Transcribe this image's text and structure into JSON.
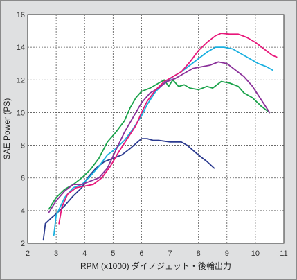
{
  "chart_data": {
    "type": "line",
    "title": "",
    "xlabel": "RPM (x1000) ダイノジェット・後輪出力",
    "ylabel": "SAE Power (PS)",
    "xlim": [
      2,
      11
    ],
    "ylim": [
      2,
      16
    ],
    "x_ticks": [
      "2",
      "3",
      "4",
      "5",
      "6",
      "7",
      "8",
      "9",
      "10",
      "11"
    ],
    "y_ticks": [
      "2",
      "4",
      "6",
      "8",
      "10",
      "12",
      "14",
      "16"
    ],
    "grid": true,
    "legend": "none",
    "series": [
      {
        "color": "#2b3a8f",
        "points": [
          [
            2.55,
            2.2
          ],
          [
            2.62,
            3.2
          ],
          [
            2.8,
            3.5
          ],
          [
            3.0,
            3.8
          ],
          [
            3.3,
            4.3
          ],
          [
            3.6,
            4.9
          ],
          [
            3.9,
            5.4
          ],
          [
            4.1,
            6.0
          ],
          [
            4.4,
            6.6
          ],
          [
            4.7,
            7.0
          ],
          [
            5.0,
            7.2
          ],
          [
            5.3,
            7.4
          ],
          [
            5.6,
            7.8
          ],
          [
            5.8,
            8.1
          ],
          [
            6.0,
            8.4
          ],
          [
            6.2,
            8.4
          ],
          [
            6.4,
            8.3
          ],
          [
            6.6,
            8.3
          ],
          [
            6.8,
            8.25
          ],
          [
            7.0,
            8.2
          ],
          [
            7.2,
            8.2
          ],
          [
            7.4,
            8.2
          ],
          [
            7.6,
            8.0
          ],
          [
            7.8,
            7.7
          ],
          [
            8.0,
            7.4
          ],
          [
            8.3,
            7.0
          ],
          [
            8.55,
            6.6
          ]
        ]
      },
      {
        "color": "#1aa24a",
        "points": [
          [
            2.75,
            4.1
          ],
          [
            3.0,
            4.8
          ],
          [
            3.3,
            5.3
          ],
          [
            3.6,
            5.6
          ],
          [
            3.9,
            6.0
          ],
          [
            4.2,
            6.5
          ],
          [
            4.5,
            7.2
          ],
          [
            4.8,
            8.2
          ],
          [
            5.1,
            8.8
          ],
          [
            5.4,
            9.5
          ],
          [
            5.6,
            10.3
          ],
          [
            5.8,
            10.9
          ],
          [
            6.0,
            11.3
          ],
          [
            6.3,
            11.5
          ],
          [
            6.6,
            11.8
          ],
          [
            6.8,
            12.0
          ],
          [
            6.95,
            11.6
          ],
          [
            7.1,
            12.0
          ],
          [
            7.3,
            11.6
          ],
          [
            7.5,
            11.7
          ],
          [
            7.7,
            11.5
          ],
          [
            8.0,
            11.4
          ],
          [
            8.3,
            11.6
          ],
          [
            8.5,
            11.5
          ],
          [
            8.8,
            11.9
          ],
          [
            9.1,
            11.8
          ],
          [
            9.4,
            11.6
          ],
          [
            9.6,
            11.2
          ],
          [
            9.9,
            10.9
          ],
          [
            10.2,
            10.4
          ],
          [
            10.5,
            10.0
          ]
        ]
      },
      {
        "color": "#1ab0e0",
        "points": [
          [
            2.92,
            2.5
          ],
          [
            3.0,
            3.7
          ],
          [
            3.3,
            4.8
          ],
          [
            3.6,
            5.4
          ],
          [
            3.9,
            5.6
          ],
          [
            4.2,
            6.1
          ],
          [
            4.5,
            6.7
          ],
          [
            4.8,
            7.4
          ],
          [
            5.1,
            7.8
          ],
          [
            5.4,
            8.3
          ],
          [
            5.7,
            9.0
          ],
          [
            6.0,
            9.8
          ],
          [
            6.2,
            10.5
          ],
          [
            6.5,
            11.3
          ],
          [
            6.8,
            11.8
          ],
          [
            7.1,
            12.2
          ],
          [
            7.4,
            12.5
          ],
          [
            7.7,
            12.9
          ],
          [
            8.0,
            13.3
          ],
          [
            8.3,
            13.7
          ],
          [
            8.6,
            14.0
          ],
          [
            8.9,
            14.0
          ],
          [
            9.2,
            13.9
          ],
          [
            9.5,
            13.6
          ],
          [
            9.8,
            13.3
          ],
          [
            10.1,
            13.0
          ],
          [
            10.4,
            12.8
          ],
          [
            10.6,
            12.6
          ]
        ]
      },
      {
        "color": "#8a2f99",
        "points": [
          [
            2.75,
            3.9
          ],
          [
            3.0,
            4.6
          ],
          [
            3.3,
            5.2
          ],
          [
            3.6,
            5.6
          ],
          [
            3.9,
            5.6
          ],
          [
            4.2,
            5.8
          ],
          [
            4.5,
            6.0
          ],
          [
            4.8,
            6.6
          ],
          [
            5.1,
            7.7
          ],
          [
            5.4,
            8.8
          ],
          [
            5.7,
            9.7
          ],
          [
            6.0,
            10.6
          ],
          [
            6.3,
            11.2
          ],
          [
            6.6,
            11.5
          ],
          [
            6.9,
            11.9
          ],
          [
            7.2,
            12.1
          ],
          [
            7.5,
            12.4
          ],
          [
            7.8,
            12.7
          ],
          [
            8.1,
            12.8
          ],
          [
            8.4,
            12.9
          ],
          [
            8.7,
            13.1
          ],
          [
            9.0,
            13.0
          ],
          [
            9.3,
            12.6
          ],
          [
            9.6,
            12.2
          ],
          [
            9.9,
            11.6
          ],
          [
            10.2,
            10.8
          ],
          [
            10.5,
            10.0
          ]
        ]
      },
      {
        "color": "#e8177a",
        "points": [
          [
            3.1,
            3.2
          ],
          [
            3.2,
            4.2
          ],
          [
            3.4,
            5.0
          ],
          [
            3.7,
            5.4
          ],
          [
            4.0,
            5.5
          ],
          [
            4.3,
            5.6
          ],
          [
            4.6,
            6.0
          ],
          [
            4.9,
            6.7
          ],
          [
            5.2,
            7.6
          ],
          [
            5.5,
            8.4
          ],
          [
            5.8,
            9.2
          ],
          [
            6.0,
            10.0
          ],
          [
            6.2,
            10.7
          ],
          [
            6.5,
            11.4
          ],
          [
            6.8,
            11.9
          ],
          [
            7.1,
            12.2
          ],
          [
            7.4,
            12.5
          ],
          [
            7.7,
            13.1
          ],
          [
            8.0,
            13.8
          ],
          [
            8.3,
            14.3
          ],
          [
            8.6,
            14.7
          ],
          [
            8.8,
            14.85
          ],
          [
            9.1,
            14.8
          ],
          [
            9.4,
            14.8
          ],
          [
            9.7,
            14.6
          ],
          [
            10.0,
            14.3
          ],
          [
            10.3,
            13.9
          ],
          [
            10.6,
            13.5
          ],
          [
            10.75,
            13.4
          ]
        ]
      }
    ]
  }
}
